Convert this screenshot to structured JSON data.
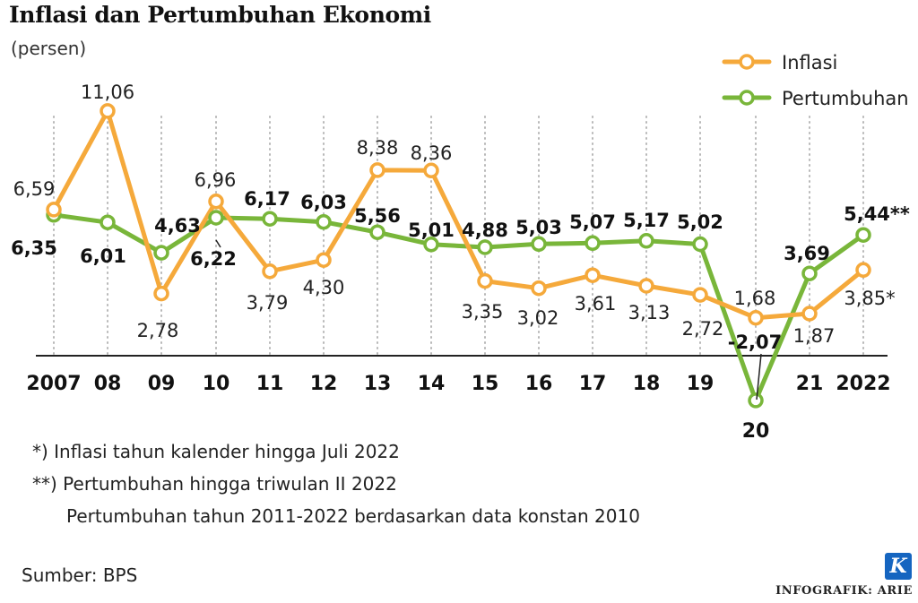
{
  "chart_data": {
    "type": "line",
    "title": "Inflasi dan Pertumbuhan Ekonomi",
    "subtitle": "(persen)",
    "x": [
      "2007",
      "08",
      "09",
      "10",
      "11",
      "12",
      "13",
      "14",
      "15",
      "16",
      "17",
      "18",
      "19",
      "20",
      "21",
      "2022"
    ],
    "series": [
      {
        "name": "Inflasi",
        "color": "#f5a93b",
        "values": [
          6.59,
          11.06,
          2.78,
          6.96,
          3.79,
          4.3,
          8.38,
          8.36,
          3.35,
          3.02,
          3.61,
          3.13,
          2.72,
          1.68,
          1.87,
          3.85
        ],
        "labels": [
          "6,59",
          "11,06",
          "2,78",
          "6,96",
          "3,79",
          "4,30",
          "8,38",
          "8,36",
          "3,35",
          "3,02",
          "3,61",
          "3,13",
          "2,72",
          "1,68",
          "1,87",
          "3,85*"
        ]
      },
      {
        "name": "Pertumbuhan",
        "color": "#79b63a",
        "values": [
          6.35,
          6.01,
          4.63,
          6.22,
          6.17,
          6.03,
          5.56,
          5.01,
          4.88,
          5.03,
          5.07,
          5.17,
          5.02,
          -2.07,
          3.69,
          5.44
        ],
        "labels": [
          "6,35",
          "6,01",
          "4,63",
          "6,22",
          "6,17",
          "6,03",
          "5,56",
          "5,01",
          "4,88",
          "5,03",
          "5,07",
          "5,17",
          "5,02",
          "-2,07",
          "3,69",
          "5,44**"
        ]
      }
    ],
    "legend": "top-right",
    "grid": "vertical dotted"
  },
  "notes": [
    "*)  Inflasi tahun kalender hingga Juli 2022",
    "**) Pertumbuhan hingga triwulan II 2022",
    "Pertumbuhan tahun 2011-2022 berdasarkan data konstan 2010"
  ],
  "source": "Sumber: BPS",
  "logo_letter": "K",
  "credit": "INFOGRAFIK: ARIE"
}
